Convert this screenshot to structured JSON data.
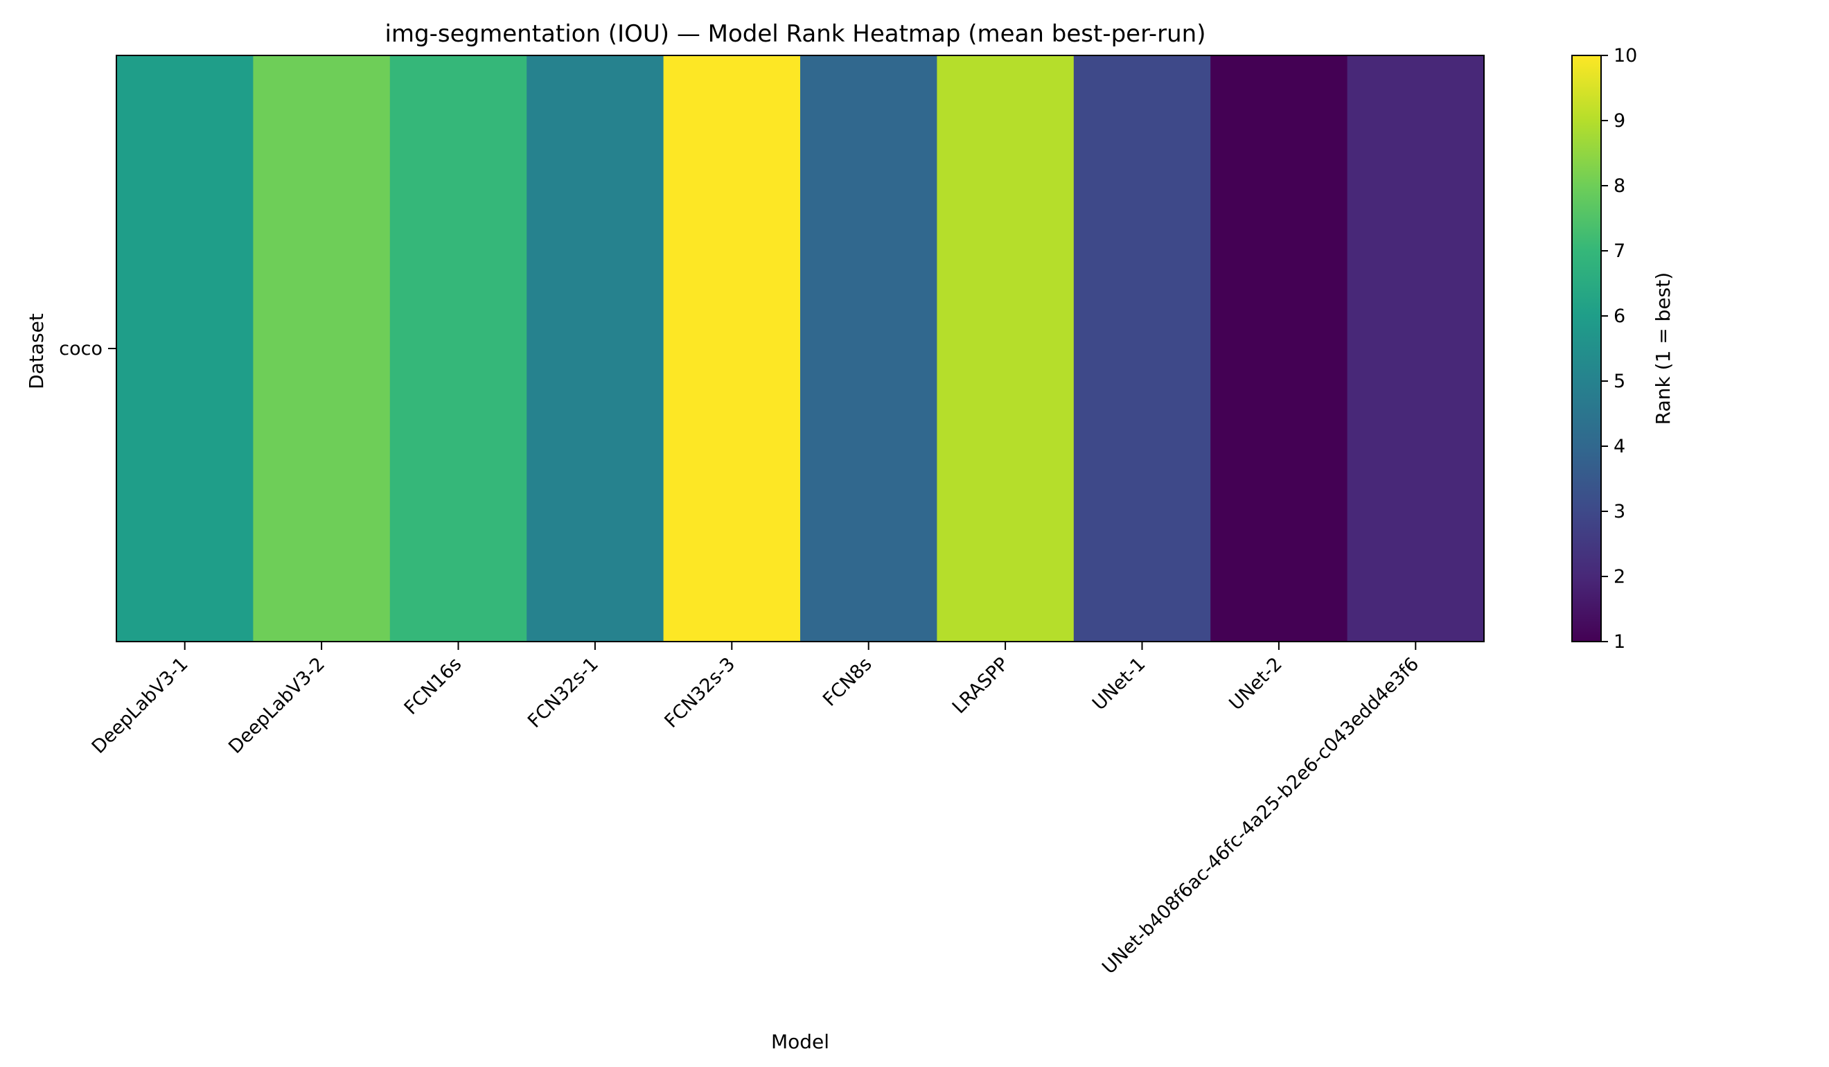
{
  "chart_data": {
    "type": "heatmap",
    "title": "img-segmentation (IOU) — Model Rank Heatmap (mean best-per-run)",
    "xlabel": "Model",
    "ylabel": "Dataset",
    "x_categories": [
      "DeepLabV3-1",
      "DeepLabV3-2",
      "FCN16s",
      "FCN32s-1",
      "FCN32s-3",
      "FCN8s",
      "LRASPP",
      "UNet-1",
      "UNet-2",
      "UNet-b408f6ac-46fc-4a25-b2e6-c043edd4e3f6"
    ],
    "y_categories": [
      "coco"
    ],
    "values": [
      [
        6,
        8,
        7,
        5,
        10,
        4,
        9,
        3,
        1,
        2
      ]
    ],
    "colorbar": {
      "label": "Rank (1 = best)",
      "range": [
        1,
        10
      ],
      "ticks": [
        1,
        2,
        3,
        4,
        5,
        6,
        7,
        8,
        9,
        10
      ],
      "colormap": "viridis"
    },
    "grid": false
  }
}
